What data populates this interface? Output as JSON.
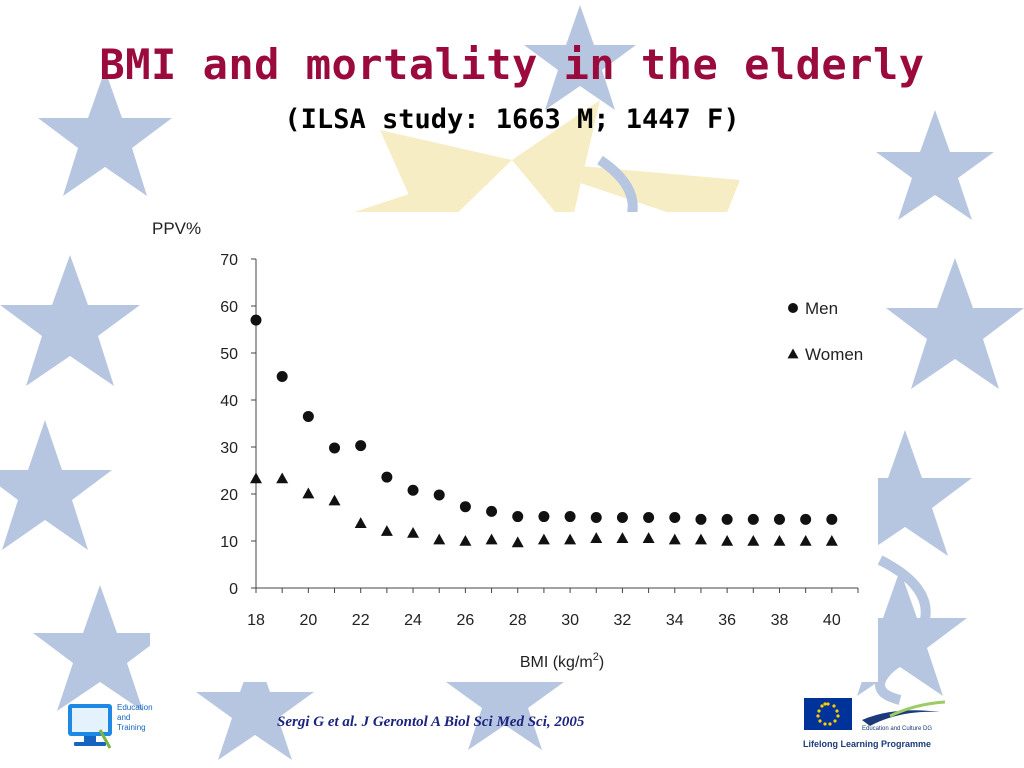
{
  "slide": {
    "title": "BMI and mortality in the elderly",
    "subtitle": "(ILSA study: 1663 M; 1447 F)",
    "citation": "Sergi G et al.  J Gerontol A Biol Sci Med Sci, 2005",
    "logo_left": {
      "icon": "computer-icon",
      "text": [
        "Education",
        "and",
        "Training"
      ]
    },
    "logo_right": {
      "icon": "eu-flag-icon",
      "caption": "Education and Culture DG",
      "programme": "Lifelong Learning Programme"
    },
    "colors": {
      "title": "#9b0a3c",
      "star": "#b7c6e0",
      "sun": "#f7edc4",
      "citation": "#1a237e"
    }
  },
  "chart_data": {
    "type": "scatter",
    "ylabel": "PPV%",
    "xlabel_main": "BMI (kg/m",
    "xlabel_sup": "2",
    "xlabel_end": ")",
    "xlim": [
      18,
      41
    ],
    "ylim": [
      0,
      70
    ],
    "x_ticks": [
      18,
      20,
      22,
      24,
      26,
      28,
      30,
      32,
      34,
      36,
      38,
      40
    ],
    "y_ticks": [
      0,
      10,
      20,
      30,
      40,
      50,
      60,
      70
    ],
    "legend": {
      "position": "top-right"
    },
    "series": [
      {
        "name": "Men",
        "marker": "circle",
        "points": [
          [
            18,
            57
          ],
          [
            19,
            45
          ],
          [
            20,
            36.5
          ],
          [
            21,
            29.8
          ],
          [
            22,
            30.3
          ],
          [
            23,
            23.6
          ],
          [
            24,
            20.8
          ],
          [
            25,
            19.8
          ],
          [
            26,
            17.3
          ],
          [
            27,
            16.3
          ],
          [
            28,
            15.2
          ],
          [
            29,
            15.2
          ],
          [
            30,
            15.2
          ],
          [
            31,
            15.0
          ],
          [
            32,
            15.0
          ],
          [
            33,
            15.0
          ],
          [
            34,
            15.0
          ],
          [
            35,
            14.6
          ],
          [
            36,
            14.6
          ],
          [
            37,
            14.6
          ],
          [
            38,
            14.6
          ],
          [
            39,
            14.6
          ],
          [
            40,
            14.6
          ]
        ]
      },
      {
        "name": "Women",
        "marker": "triangle",
        "points": [
          [
            18,
            23.3
          ],
          [
            19,
            23.3
          ],
          [
            20,
            20.1
          ],
          [
            21,
            18.6
          ],
          [
            22,
            13.8
          ],
          [
            23,
            12.1
          ],
          [
            24,
            11.7
          ],
          [
            25,
            10.3
          ],
          [
            26,
            10.0
          ],
          [
            27,
            10.3
          ],
          [
            28,
            9.7
          ],
          [
            29,
            10.3
          ],
          [
            30,
            10.3
          ],
          [
            31,
            10.6
          ],
          [
            32,
            10.6
          ],
          [
            33,
            10.6
          ],
          [
            34,
            10.3
          ],
          [
            35,
            10.3
          ],
          [
            36,
            10.0
          ],
          [
            37,
            10.0
          ],
          [
            38,
            10.0
          ],
          [
            39,
            10.0
          ],
          [
            40,
            10.0
          ]
        ]
      }
    ]
  }
}
